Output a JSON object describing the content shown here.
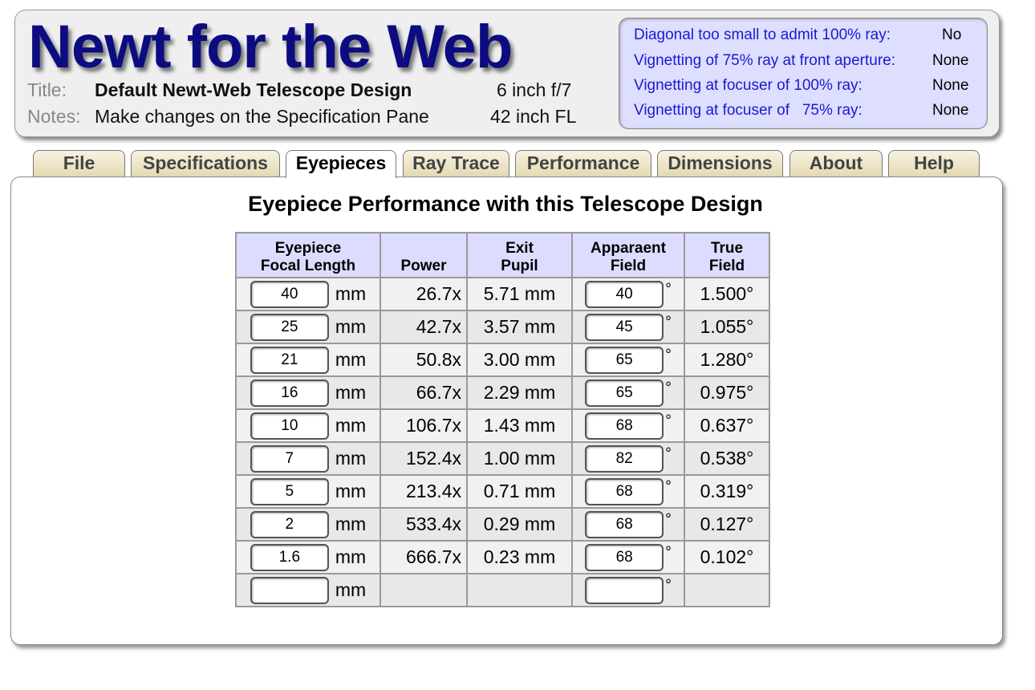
{
  "header": {
    "logo": "Newt for the Web",
    "title_label": "Title:",
    "title": "Default Newt-Web Telescope Design",
    "notes_label": "Notes:",
    "notes": "Make changes on the Specification Pane",
    "aperture": "6 inch f/7",
    "focal_length": "42 inch FL"
  },
  "status": [
    {
      "label": "Diagonal too small to admit 100% ray:",
      "value": "No"
    },
    {
      "label": "Vignetting of 75% ray at front aperture:",
      "value": "None"
    },
    {
      "label": "Vignetting at focuser of 100% ray:",
      "value": "None"
    },
    {
      "label": "Vignetting at focuser of   75% ray:",
      "value": "None"
    }
  ],
  "tabs": [
    "File",
    "Specifications",
    "Eyepieces",
    "Ray Trace",
    "Performance",
    "Dimensions",
    "About",
    "Help"
  ],
  "active_tab": "Eyepieces",
  "main": {
    "heading": "Eyepiece Performance with this Telescope Design",
    "columns": [
      "Eyepiece\nFocal Length",
      "Power",
      "Exit\nPupil",
      "Apparaent\nField",
      "True\nField"
    ],
    "unit_mm": "mm",
    "deg": "°",
    "rows": [
      {
        "fl": "40",
        "power": "26.7x",
        "pupil": "5.71 mm",
        "af": "40",
        "tf": "1.500°"
      },
      {
        "fl": "25",
        "power": "42.7x",
        "pupil": "3.57 mm",
        "af": "45",
        "tf": "1.055°"
      },
      {
        "fl": "21",
        "power": "50.8x",
        "pupil": "3.00 mm",
        "af": "65",
        "tf": "1.280°"
      },
      {
        "fl": "16",
        "power": "66.7x",
        "pupil": "2.29 mm",
        "af": "65",
        "tf": "0.975°"
      },
      {
        "fl": "10",
        "power": "106.7x",
        "pupil": "1.43 mm",
        "af": "68",
        "tf": "0.637°"
      },
      {
        "fl": "7",
        "power": "152.4x",
        "pupil": "1.00 mm",
        "af": "82",
        "tf": "0.538°"
      },
      {
        "fl": "5",
        "power": "213.4x",
        "pupil": "0.71 mm",
        "af": "68",
        "tf": "0.319°"
      },
      {
        "fl": "2",
        "power": "533.4x",
        "pupil": "0.29 mm",
        "af": "68",
        "tf": "0.127°"
      },
      {
        "fl": "1.6",
        "power": "666.7x",
        "pupil": "0.23 mm",
        "af": "68",
        "tf": "0.102°"
      },
      {
        "fl": "",
        "power": "",
        "pupil": "",
        "af": "",
        "tf": ""
      }
    ]
  }
}
